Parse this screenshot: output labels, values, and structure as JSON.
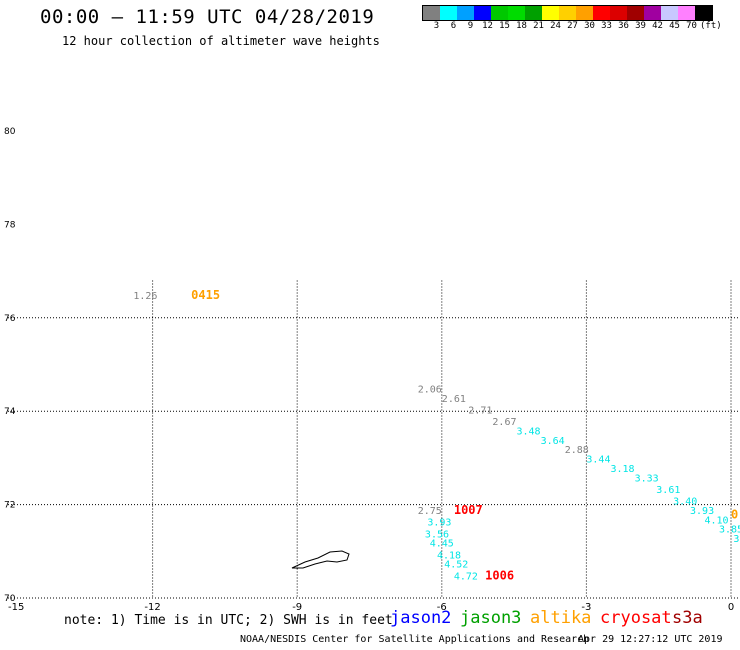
{
  "header": {
    "title": "00:00 – 11:59 UTC 04/28/2019",
    "subtitle": "12 hour collection of altimeter wave heights"
  },
  "legend": {
    "colors": [
      "#808080",
      "#00ffff",
      "#00a0ff",
      "#0000ff",
      "#00c800",
      "#00dc00",
      "#00a000",
      "#ffff00",
      "#ffd000",
      "#ffa000",
      "#ff0000",
      "#dc0000",
      "#a00000",
      "#a000a0",
      "#c8c8ff",
      "#ff80ff",
      "#000000"
    ],
    "labels": [
      "3",
      "6",
      "9",
      "12",
      "15",
      "18",
      "21",
      "24",
      "27",
      "30",
      "33",
      "36",
      "39",
      "42",
      "45",
      "70",
      "(ft)"
    ]
  },
  "map": {
    "lat_labels": [
      "80",
      "78",
      "76",
      "74",
      "72",
      "70"
    ],
    "lon_labels": [
      "-15",
      "-12",
      "-9",
      "-6",
      "-3",
      "0"
    ],
    "observations": [
      {
        "text": "1.26",
        "lon": -12.4,
        "lat": 76.4,
        "color": "#808080"
      },
      {
        "text": "0415",
        "lon": -11.2,
        "lat": 76.4,
        "color": "#ffa000",
        "time": true
      },
      {
        "text": "2.06",
        "lon": -6.5,
        "lat": 74.4,
        "color": "#808080"
      },
      {
        "text": "2.61",
        "lon": -6.0,
        "lat": 74.2,
        "color": "#808080"
      },
      {
        "text": "2.71",
        "lon": -5.45,
        "lat": 73.95,
        "color": "#808080"
      },
      {
        "text": "2.67",
        "lon": -4.95,
        "lat": 73.7,
        "color": "#808080"
      },
      {
        "text": "3.48",
        "lon": -4.45,
        "lat": 73.5,
        "color": "#00e5e5"
      },
      {
        "text": "3.64",
        "lon": -3.95,
        "lat": 73.3,
        "color": "#00e5e5"
      },
      {
        "text": "2.88",
        "lon": -3.45,
        "lat": 73.1,
        "color": "#808080"
      },
      {
        "text": "3.44",
        "lon": -3.0,
        "lat": 72.9,
        "color": "#00e5e5"
      },
      {
        "text": "3.18",
        "lon": -2.5,
        "lat": 72.7,
        "color": "#00e5e5"
      },
      {
        "text": "3.33",
        "lon": -2.0,
        "lat": 72.5,
        "color": "#00e5e5"
      },
      {
        "text": "3.61",
        "lon": -1.55,
        "lat": 72.25,
        "color": "#00e5e5"
      },
      {
        "text": "3.40",
        "lon": -1.2,
        "lat": 72.0,
        "color": "#00e5e5"
      },
      {
        "text": "3.93",
        "lon": -0.85,
        "lat": 71.8,
        "color": "#00e5e5"
      },
      {
        "text": "4.10",
        "lon": -0.55,
        "lat": 71.6,
        "color": "#00e5e5"
      },
      {
        "text": "3.85",
        "lon": -0.25,
        "lat": 71.4,
        "color": "#00e5e5"
      },
      {
        "text": "3",
        "lon": 0.05,
        "lat": 71.2,
        "color": "#00e5e5"
      },
      {
        "text": "0",
        "lon": 0.0,
        "lat": 71.7,
        "color": "#ffa000",
        "time": true
      },
      {
        "text": "2.75",
        "lon": -6.5,
        "lat": 71.8,
        "color": "#808080"
      },
      {
        "text": "1007",
        "lon": -5.75,
        "lat": 71.8,
        "color": "#ff0000",
        "time": true
      },
      {
        "text": "3.93",
        "lon": -6.3,
        "lat": 71.55,
        "color": "#00e5e5"
      },
      {
        "text": "3.56",
        "lon": -6.35,
        "lat": 71.3,
        "color": "#00e5e5"
      },
      {
        "text": "4.45",
        "lon": -6.25,
        "lat": 71.1,
        "color": "#00e5e5"
      },
      {
        "text": "4.18",
        "lon": -6.1,
        "lat": 70.85,
        "color": "#00e5e5"
      },
      {
        "text": "4.52",
        "lon": -5.95,
        "lat": 70.65,
        "color": "#00e5e5"
      },
      {
        "text": "4.72",
        "lon": -5.75,
        "lat": 70.4,
        "color": "#00e5e5"
      },
      {
        "text": "1006",
        "lon": -5.1,
        "lat": 70.4,
        "color": "#ff0000",
        "time": true
      }
    ],
    "island_name": "jan-mayen"
  },
  "note": "note: 1) Time is in UTC; 2) SWH is in feet",
  "satellites": [
    {
      "name": "jason2",
      "color": "#0000ff"
    },
    {
      "name": "jason3",
      "color": "#00a000"
    },
    {
      "name": "altika",
      "color": "#ffa000"
    },
    {
      "name": "cryosat",
      "color": "#ff0000"
    },
    {
      "name": "s3a",
      "color": "#a00000"
    }
  ],
  "footer": {
    "credit": "NOAA/NESDIS Center for Satellite Applications and Research",
    "timestamp": "Apr 29 12:27:12 UTC 2019"
  }
}
